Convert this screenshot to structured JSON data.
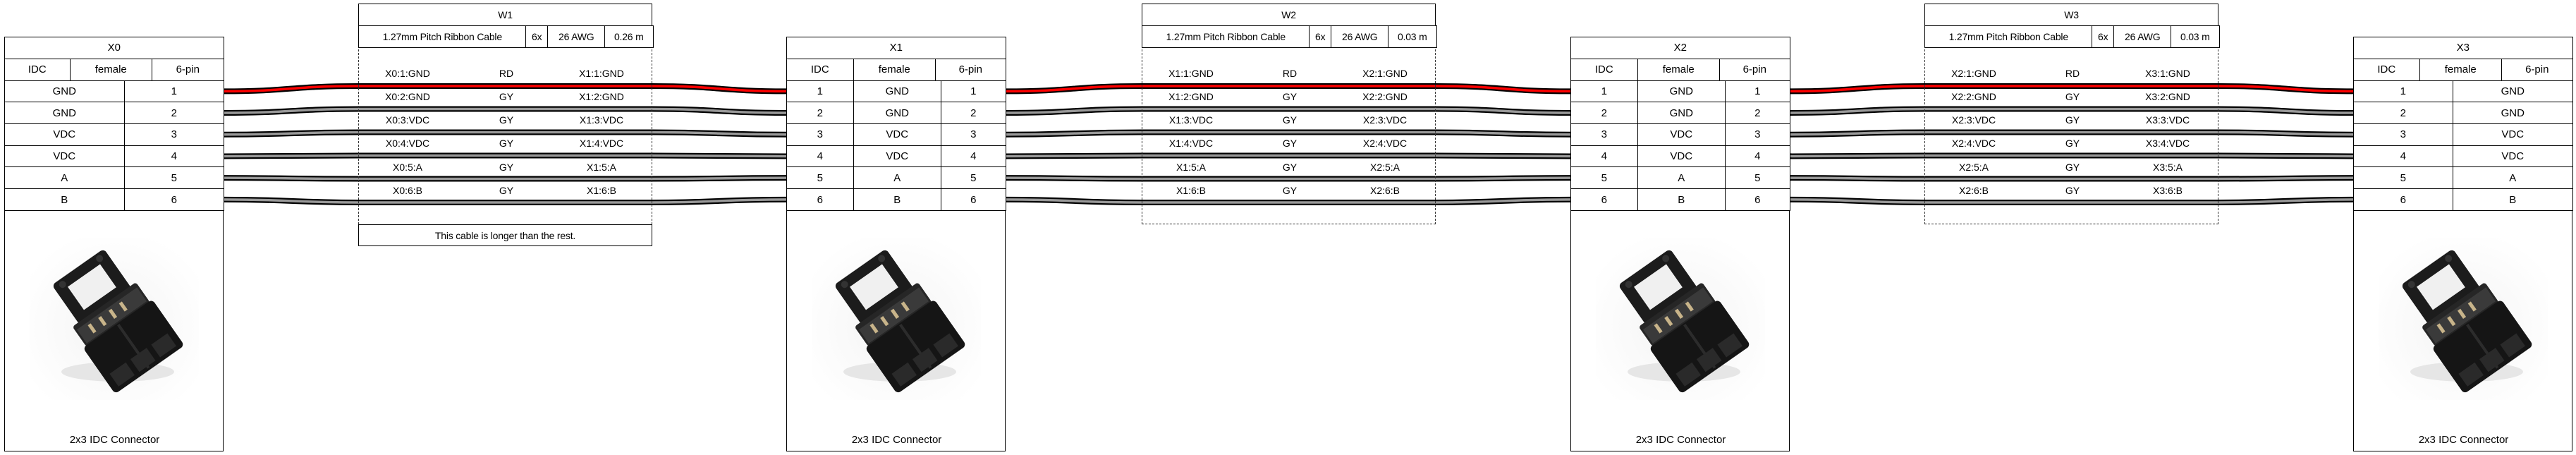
{
  "wire_colors": {
    "RD": "#ff0000",
    "GY": "#999999",
    "outline": "#000000"
  },
  "connectors": [
    {
      "name": "X0",
      "type": "IDC",
      "gender": "female",
      "pincount": "6-pin",
      "pins": [
        "1",
        "2",
        "3",
        "4",
        "5",
        "6"
      ],
      "pinlabels": [
        "GND",
        "GND",
        "VDC",
        "VDC",
        "A",
        "B"
      ],
      "image_icon": "idc-connector-photo",
      "caption": "2x3 IDC Connector"
    },
    {
      "name": "X1",
      "type": "IDC",
      "gender": "female",
      "pincount": "6-pin",
      "pins": [
        "1",
        "2",
        "3",
        "4",
        "5",
        "6"
      ],
      "pinlabels": [
        "GND",
        "GND",
        "VDC",
        "VDC",
        "A",
        "B"
      ],
      "image_icon": "idc-connector-photo",
      "caption": "2x3 IDC Connector"
    },
    {
      "name": "X2",
      "type": "IDC",
      "gender": "female",
      "pincount": "6-pin",
      "pins": [
        "1",
        "2",
        "3",
        "4",
        "5",
        "6"
      ],
      "pinlabels": [
        "GND",
        "GND",
        "VDC",
        "VDC",
        "A",
        "B"
      ],
      "image_icon": "idc-connector-photo",
      "caption": "2x3 IDC Connector"
    },
    {
      "name": "X3",
      "type": "IDC",
      "gender": "female",
      "pincount": "6-pin",
      "pins": [
        "1",
        "2",
        "3",
        "4",
        "5",
        "6"
      ],
      "pinlabels": [
        "GND",
        "GND",
        "VDC",
        "VDC",
        "A",
        "B"
      ],
      "image_icon": "idc-connector-photo",
      "caption": "2x3 IDC Connector"
    }
  ],
  "cables": [
    {
      "name": "W1",
      "type": "1.27mm Pitch Ribbon Cable",
      "wirecount": "6x",
      "gauge": "26 AWG",
      "length": "0.26 m",
      "wires": [
        {
          "from": "X0:1:GND",
          "color": "RD",
          "to": "X1:1:GND"
        },
        {
          "from": "X0:2:GND",
          "color": "GY",
          "to": "X1:2:GND"
        },
        {
          "from": "X0:3:VDC",
          "color": "GY",
          "to": "X1:3:VDC"
        },
        {
          "from": "X0:4:VDC",
          "color": "GY",
          "to": "X1:4:VDC"
        },
        {
          "from": "X0:5:A",
          "color": "GY",
          "to": "X1:5:A"
        },
        {
          "from": "X0:6:B",
          "color": "GY",
          "to": "X1:6:B"
        }
      ],
      "note": "This cable is longer than the rest."
    },
    {
      "name": "W2",
      "type": "1.27mm Pitch Ribbon Cable",
      "wirecount": "6x",
      "gauge": "26 AWG",
      "length": "0.03 m",
      "wires": [
        {
          "from": "X1:1:GND",
          "color": "RD",
          "to": "X2:1:GND"
        },
        {
          "from": "X1:2:GND",
          "color": "GY",
          "to": "X2:2:GND"
        },
        {
          "from": "X1:3:VDC",
          "color": "GY",
          "to": "X2:3:VDC"
        },
        {
          "from": "X1:4:VDC",
          "color": "GY",
          "to": "X2:4:VDC"
        },
        {
          "from": "X1:5:A",
          "color": "GY",
          "to": "X2:5:A"
        },
        {
          "from": "X1:6:B",
          "color": "GY",
          "to": "X2:6:B"
        }
      ]
    },
    {
      "name": "W3",
      "type": "1.27mm Pitch Ribbon Cable",
      "wirecount": "6x",
      "gauge": "26 AWG",
      "length": "0.03 m",
      "wires": [
        {
          "from": "X2:1:GND",
          "color": "RD",
          "to": "X3:1:GND"
        },
        {
          "from": "X2:2:GND",
          "color": "GY",
          "to": "X3:2:GND"
        },
        {
          "from": "X2:3:VDC",
          "color": "GY",
          "to": "X3:3:VDC"
        },
        {
          "from": "X2:4:VDC",
          "color": "GY",
          "to": "X3:4:VDC"
        },
        {
          "from": "X2:5:A",
          "color": "GY",
          "to": "X3:5:A"
        },
        {
          "from": "X2:6:B",
          "color": "GY",
          "to": "X3:6:B"
        }
      ]
    }
  ]
}
